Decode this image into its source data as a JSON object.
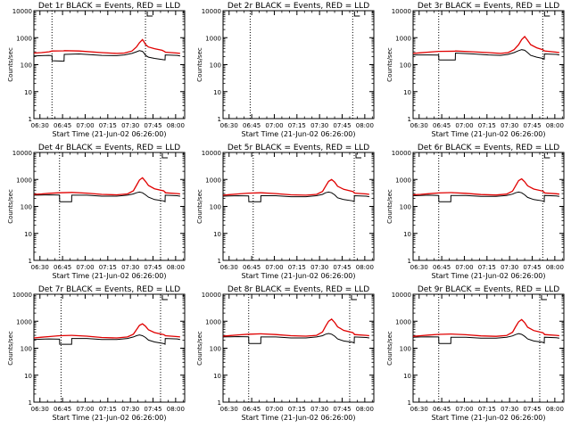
{
  "figure": {
    "xlabel": "Start Time (21-Jun-02 06:26:00)",
    "ylabel": "Counts/sec",
    "x_tick_labels": [
      "06:30",
      "06:45",
      "07:00",
      "07:15",
      "07:30",
      "07:45",
      "08:00"
    ],
    "y_tick_labels": [
      "1",
      "10",
      "100",
      "1000",
      "10000"
    ],
    "colors": {
      "events": "#000000",
      "lld": "#e00000",
      "axes": "#000000",
      "background": "#ffffff"
    }
  },
  "chart_data": [
    {
      "type": "line",
      "title": "Det 1r  BLACK = Events, RED = LLD",
      "x_unit": "minutes after 06:26",
      "xlim": [
        0,
        100
      ],
      "ylim": [
        1,
        10000
      ],
      "yscale": "log",
      "vlines": [
        12,
        74
      ],
      "has_events": true,
      "x": [
        0,
        5,
        10,
        12,
        12.1,
        20,
        20.1,
        30,
        45,
        55,
        60,
        65,
        68,
        70,
        72,
        73,
        74,
        76,
        80,
        85,
        87,
        87.1,
        95,
        97
      ],
      "series": [
        {
          "name": "Events",
          "values": [
            210,
            215,
            220,
            215,
            140,
            135,
            240,
            250,
            220,
            215,
            230,
            260,
            300,
            330,
            310,
            270,
            220,
            190,
            170,
            155,
            150,
            230,
            220,
            210
          ]
        },
        {
          "name": "LLD",
          "values": [
            270,
            280,
            300,
            320,
            320,
            325,
            330,
            320,
            280,
            260,
            270,
            320,
            450,
            650,
            850,
            700,
            560,
            450,
            390,
            340,
            300,
            290,
            270,
            260
          ]
        }
      ]
    },
    {
      "type": "line",
      "title": "Det 2r  BLACK = Events, RED = LLD",
      "x_unit": "minutes after 06:26",
      "xlim": [
        0,
        100
      ],
      "ylim": [
        1,
        10000
      ],
      "yscale": "log",
      "vlines": [
        18,
        86
      ],
      "has_events": false,
      "x": [],
      "series": []
    },
    {
      "type": "line",
      "title": "Det 3r  BLACK = Events, RED = LLD",
      "x_unit": "minutes after 06:26",
      "xlim": [
        0,
        100
      ],
      "ylim": [
        1,
        10000
      ],
      "yscale": "log",
      "vlines": [
        17,
        86
      ],
      "has_events": true,
      "x": [
        0,
        5,
        10,
        17,
        17.1,
        28,
        28.1,
        40,
        50,
        58,
        63,
        67,
        70,
        72,
        74,
        76,
        78,
        82,
        86,
        87,
        87.1,
        95,
        97
      ],
      "series": [
        {
          "name": "Events",
          "values": [
            230,
            230,
            230,
            225,
            150,
            150,
            270,
            250,
            230,
            220,
            240,
            280,
            330,
            360,
            340,
            280,
            220,
            190,
            170,
            160,
            250,
            240,
            230
          ]
        },
        {
          "name": "LLD",
          "values": [
            260,
            275,
            290,
            310,
            310,
            315,
            320,
            300,
            280,
            260,
            280,
            360,
            550,
            850,
            1100,
            800,
            550,
            420,
            360,
            330,
            320,
            290,
            280
          ]
        }
      ]
    },
    {
      "type": "line",
      "title": "Det 4r  BLACK = Events, RED = LLD",
      "x_unit": "minutes after 06:26",
      "xlim": [
        0,
        100
      ],
      "ylim": [
        1,
        10000
      ],
      "yscale": "log",
      "vlines": [
        17,
        84
      ],
      "has_events": true,
      "x": [
        0,
        5,
        10,
        17,
        17.1,
        25,
        25.1,
        35,
        45,
        55,
        62,
        66,
        68,
        70,
        72,
        74,
        76,
        80,
        86,
        87,
        87.1,
        95,
        97
      ],
      "series": [
        {
          "name": "Events",
          "values": [
            260,
            265,
            270,
            265,
            150,
            150,
            260,
            260,
            240,
            240,
            260,
            290,
            320,
            340,
            320,
            270,
            220,
            180,
            160,
            150,
            260,
            250,
            240
          ]
        },
        {
          "name": "LLD",
          "values": [
            280,
            290,
            305,
            320,
            320,
            330,
            330,
            310,
            280,
            270,
            290,
            380,
            600,
            950,
            1150,
            850,
            600,
            450,
            380,
            340,
            320,
            300,
            290
          ]
        }
      ]
    },
    {
      "type": "line",
      "title": "Det 5r  BLACK = Events, RED = LLD",
      "x_unit": "minutes after 06:26",
      "xlim": [
        0,
        100
      ],
      "ylim": [
        1,
        10000
      ],
      "yscale": "log",
      "vlines": [
        20,
        87
      ],
      "has_events": true,
      "x": [
        0,
        5,
        10,
        17,
        17.1,
        25,
        25.1,
        35,
        45,
        55,
        62,
        66,
        68,
        70,
        72,
        74,
        76,
        80,
        86,
        87,
        87.1,
        95,
        97
      ],
      "series": [
        {
          "name": "Events",
          "values": [
            240,
            245,
            250,
            245,
            150,
            150,
            250,
            250,
            230,
            230,
            250,
            280,
            320,
            340,
            320,
            270,
            210,
            180,
            160,
            150,
            250,
            240,
            230
          ]
        },
        {
          "name": "LLD",
          "values": [
            260,
            275,
            290,
            310,
            310,
            320,
            320,
            300,
            270,
            260,
            280,
            360,
            560,
            850,
            1000,
            800,
            560,
            430,
            360,
            330,
            310,
            290,
            280
          ]
        }
      ]
    },
    {
      "type": "line",
      "title": "Det 6r  BLACK = Events, RED = LLD",
      "x_unit": "minutes after 06:26",
      "xlim": [
        0,
        100
      ],
      "ylim": [
        1,
        10000
      ],
      "yscale": "log",
      "vlines": [
        17,
        86
      ],
      "has_events": true,
      "x": [
        0,
        5,
        10,
        17,
        17.1,
        25,
        25.1,
        35,
        45,
        55,
        62,
        66,
        68,
        70,
        72,
        74,
        76,
        80,
        86,
        87,
        87.1,
        95,
        97
      ],
      "series": [
        {
          "name": "Events",
          "values": [
            250,
            255,
            260,
            255,
            150,
            150,
            255,
            255,
            235,
            235,
            255,
            285,
            320,
            340,
            320,
            270,
            215,
            180,
            160,
            150,
            255,
            245,
            235
          ]
        },
        {
          "name": "LLD",
          "values": [
            270,
            280,
            295,
            315,
            315,
            325,
            325,
            305,
            275,
            265,
            285,
            370,
            580,
            900,
            1050,
            820,
            580,
            440,
            370,
            335,
            315,
            295,
            285
          ]
        }
      ]
    },
    {
      "type": "line",
      "title": "Det 7r  BLACK = Events, RED = LLD",
      "x_unit": "minutes after 06:26",
      "xlim": [
        0,
        100
      ],
      "ylim": [
        1,
        10000
      ],
      "yscale": "log",
      "vlines": [
        18,
        84
      ],
      "has_events": true,
      "x": [
        0,
        5,
        10,
        17,
        17.1,
        25,
        25.1,
        35,
        45,
        55,
        62,
        66,
        68,
        70,
        72,
        74,
        76,
        80,
        86,
        87,
        87.1,
        95,
        97
      ],
      "series": [
        {
          "name": "Events",
          "values": [
            210,
            215,
            220,
            215,
            140,
            140,
            230,
            230,
            210,
            210,
            230,
            260,
            290,
            310,
            290,
            250,
            200,
            170,
            150,
            140,
            230,
            220,
            210
          ]
        },
        {
          "name": "LLD",
          "values": [
            240,
            255,
            270,
            290,
            290,
            300,
            300,
            280,
            250,
            240,
            260,
            330,
            480,
            700,
            800,
            650,
            480,
            380,
            320,
            300,
            290,
            270,
            260
          ]
        }
      ]
    },
    {
      "type": "line",
      "title": "Det 8r  BLACK = Events, RED = LLD",
      "x_unit": "minutes after 06:26",
      "xlim": [
        0,
        100
      ],
      "ylim": [
        1,
        10000
      ],
      "yscale": "log",
      "vlines": [
        17,
        84
      ],
      "has_events": true,
      "x": [
        0,
        5,
        10,
        17,
        17.1,
        25,
        25.1,
        35,
        45,
        55,
        62,
        66,
        68,
        70,
        72,
        74,
        76,
        80,
        86,
        87,
        87.1,
        95,
        97
      ],
      "series": [
        {
          "name": "Events",
          "values": [
            260,
            265,
            270,
            265,
            150,
            150,
            260,
            260,
            240,
            240,
            260,
            290,
            330,
            350,
            330,
            280,
            220,
            185,
            165,
            155,
            260,
            250,
            240
          ]
        },
        {
          "name": "LLD",
          "values": [
            280,
            295,
            310,
            330,
            330,
            340,
            340,
            320,
            290,
            280,
            300,
            400,
            650,
            1000,
            1200,
            900,
            620,
            460,
            380,
            340,
            320,
            300,
            290
          ]
        }
      ]
    },
    {
      "type": "line",
      "title": "Det 9r  BLACK = Events, RED = LLD",
      "x_unit": "minutes after 06:26",
      "xlim": [
        0,
        100
      ],
      "ylim": [
        1,
        10000
      ],
      "yscale": "log",
      "vlines": [
        17,
        84
      ],
      "has_events": true,
      "x": [
        0,
        5,
        10,
        17,
        17.1,
        25,
        25.1,
        35,
        45,
        55,
        62,
        66,
        68,
        70,
        72,
        74,
        76,
        80,
        86,
        87,
        87.1,
        95,
        97
      ],
      "series": [
        {
          "name": "Events",
          "values": [
            255,
            260,
            265,
            260,
            150,
            150,
            255,
            255,
            235,
            235,
            255,
            285,
            320,
            345,
            325,
            275,
            220,
            185,
            165,
            155,
            255,
            245,
            235
          ]
        },
        {
          "name": "LLD",
          "values": [
            275,
            290,
            305,
            325,
            325,
            335,
            335,
            315,
            285,
            275,
            295,
            390,
            620,
            950,
            1150,
            880,
            600,
            450,
            375,
            340,
            320,
            300,
            290
          ]
        }
      ]
    }
  ]
}
